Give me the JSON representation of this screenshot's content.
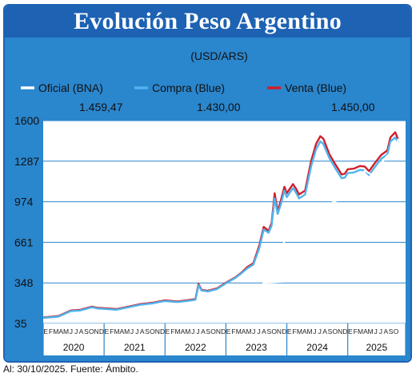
{
  "title": "Evolución Peso Argentino",
  "unit": "(USD/ARS)",
  "footer": "Al: 30/10/2025. Fuente: Ámbito.",
  "colors": {
    "banner": "#1d62b3",
    "panel": "#2a86cd",
    "oficial": "#ffffff",
    "compra": "#4fb4ee",
    "venta": "#d11f2a"
  },
  "chart_data": {
    "type": "line",
    "yticks": [
      "1600",
      "1287",
      "974",
      "661",
      "348",
      "35"
    ],
    "ylim": [
      35,
      1600
    ],
    "series": [
      {
        "name": "Oficial (BNA)",
        "last_label": "1.459,47",
        "points": [
          [
            2020.0,
            60
          ],
          [
            2020.3,
            67
          ],
          [
            2020.6,
            74
          ],
          [
            2020.9,
            80
          ],
          [
            2021.0,
            85
          ],
          [
            2021.5,
            97
          ],
          [
            2021.9,
            105
          ],
          [
            2022.0,
            107
          ],
          [
            2022.3,
            118
          ],
          [
            2022.6,
            140
          ],
          [
            2022.9,
            170
          ],
          [
            2023.0,
            180
          ],
          [
            2023.3,
            215
          ],
          [
            2023.55,
            280
          ],
          [
            2023.62,
            350
          ],
          [
            2023.94,
            358
          ],
          [
            2023.96,
            810
          ],
          [
            2024.0,
            820
          ],
          [
            2024.5,
            915
          ],
          [
            2024.9,
            1000
          ],
          [
            2025.0,
            1050
          ],
          [
            2025.15,
            1073
          ],
          [
            2025.28,
            1215
          ],
          [
            2025.4,
            1180
          ],
          [
            2025.55,
            1270
          ],
          [
            2025.65,
            1330
          ],
          [
            2025.72,
            1345
          ],
          [
            2025.78,
            1360
          ],
          [
            2025.83,
            1460
          ]
        ]
      },
      {
        "name": "Compra (Blue)",
        "last_label": "1.430,00",
        "points": [
          [
            2020.0,
            78
          ],
          [
            2020.25,
            88
          ],
          [
            2020.45,
            130
          ],
          [
            2020.6,
            135
          ],
          [
            2020.8,
            160
          ],
          [
            2020.9,
            150
          ],
          [
            2021.0,
            148
          ],
          [
            2021.2,
            141
          ],
          [
            2021.4,
            160
          ],
          [
            2021.6,
            180
          ],
          [
            2021.8,
            190
          ],
          [
            2021.9,
            200
          ],
          [
            2022.0,
            208
          ],
          [
            2022.2,
            200
          ],
          [
            2022.35,
            208
          ],
          [
            2022.5,
            218
          ],
          [
            2022.55,
            330
          ],
          [
            2022.6,
            290
          ],
          [
            2022.7,
            282
          ],
          [
            2022.85,
            300
          ],
          [
            2023.0,
            345
          ],
          [
            2023.15,
            385
          ],
          [
            2023.25,
            420
          ],
          [
            2023.35,
            460
          ],
          [
            2023.45,
            490
          ],
          [
            2023.55,
            620
          ],
          [
            2023.62,
            760
          ],
          [
            2023.7,
            735
          ],
          [
            2023.75,
            790
          ],
          [
            2023.8,
            1000
          ],
          [
            2023.85,
            880
          ],
          [
            2023.9,
            950
          ],
          [
            2023.96,
            1060
          ],
          [
            2024.0,
            1010
          ],
          [
            2024.1,
            1080
          ],
          [
            2024.15,
            1045
          ],
          [
            2024.2,
            1000
          ],
          [
            2024.3,
            1030
          ],
          [
            2024.4,
            1250
          ],
          [
            2024.48,
            1380
          ],
          [
            2024.55,
            1440
          ],
          [
            2024.6,
            1420
          ],
          [
            2024.7,
            1310
          ],
          [
            2024.8,
            1230
          ],
          [
            2024.9,
            1155
          ],
          [
            2024.95,
            1160
          ],
          [
            2025.0,
            1195
          ],
          [
            2025.1,
            1200
          ],
          [
            2025.2,
            1220
          ],
          [
            2025.28,
            1215
          ],
          [
            2025.35,
            1180
          ],
          [
            2025.45,
            1245
          ],
          [
            2025.55,
            1305
          ],
          [
            2025.65,
            1340
          ],
          [
            2025.7,
            1440
          ],
          [
            2025.78,
            1470
          ],
          [
            2025.83,
            1430
          ]
        ]
      },
      {
        "name": "Venta (Blue)",
        "last_label": "1.450,00",
        "points": [
          [
            2020.0,
            82
          ],
          [
            2020.25,
            92
          ],
          [
            2020.45,
            135
          ],
          [
            2020.6,
            140
          ],
          [
            2020.8,
            165
          ],
          [
            2020.9,
            155
          ],
          [
            2021.0,
            153
          ],
          [
            2021.2,
            146
          ],
          [
            2021.4,
            165
          ],
          [
            2021.6,
            185
          ],
          [
            2021.8,
            195
          ],
          [
            2021.9,
            205
          ],
          [
            2022.0,
            213
          ],
          [
            2022.2,
            205
          ],
          [
            2022.35,
            213
          ],
          [
            2022.5,
            223
          ],
          [
            2022.55,
            340
          ],
          [
            2022.6,
            295
          ],
          [
            2022.7,
            287
          ],
          [
            2022.85,
            305
          ],
          [
            2023.0,
            350
          ],
          [
            2023.15,
            390
          ],
          [
            2023.25,
            425
          ],
          [
            2023.35,
            470
          ],
          [
            2023.45,
            500
          ],
          [
            2023.55,
            640
          ],
          [
            2023.62,
            780
          ],
          [
            2023.7,
            750
          ],
          [
            2023.75,
            810
          ],
          [
            2023.8,
            1040
          ],
          [
            2023.85,
            900
          ],
          [
            2023.9,
            980
          ],
          [
            2023.96,
            1090
          ],
          [
            2024.0,
            1040
          ],
          [
            2024.1,
            1110
          ],
          [
            2024.15,
            1075
          ],
          [
            2024.2,
            1030
          ],
          [
            2024.3,
            1060
          ],
          [
            2024.4,
            1290
          ],
          [
            2024.48,
            1420
          ],
          [
            2024.55,
            1480
          ],
          [
            2024.6,
            1460
          ],
          [
            2024.7,
            1340
          ],
          [
            2024.8,
            1260
          ],
          [
            2024.9,
            1185
          ],
          [
            2024.95,
            1190
          ],
          [
            2025.0,
            1225
          ],
          [
            2025.1,
            1230
          ],
          [
            2025.2,
            1250
          ],
          [
            2025.28,
            1245
          ],
          [
            2025.35,
            1210
          ],
          [
            2025.45,
            1275
          ],
          [
            2025.55,
            1335
          ],
          [
            2025.65,
            1370
          ],
          [
            2025.7,
            1470
          ],
          [
            2025.78,
            1510
          ],
          [
            2025.83,
            1450
          ]
        ]
      }
    ],
    "months": [
      "E",
      "F",
      "M",
      "A",
      "M",
      "J",
      "J",
      "A",
      "S",
      "O",
      "N",
      "D"
    ],
    "months_2025": [
      "E",
      "F",
      "M",
      "A",
      "M",
      "J",
      "J",
      "A",
      "S",
      "O"
    ],
    "years": [
      "2020",
      "2021",
      "2022",
      "2023",
      "2024",
      "2025"
    ]
  }
}
